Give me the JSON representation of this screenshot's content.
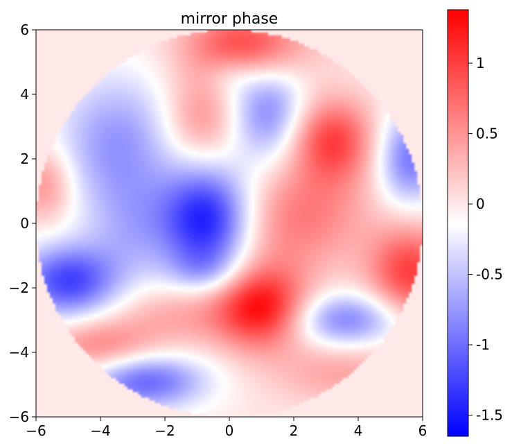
{
  "chart_data": {
    "type": "heatmap",
    "title": "mirror phase",
    "xlabel": "",
    "ylabel": "",
    "xlim": [
      -6,
      6
    ],
    "ylim": [
      -6,
      6
    ],
    "x_ticks": [
      -6,
      -4,
      -2,
      0,
      2,
      4,
      6
    ],
    "y_ticks": [
      -6,
      -4,
      -2,
      0,
      2,
      4,
      6
    ],
    "x_tick_labels": [
      "−6",
      "−4",
      "−2",
      "0",
      "2",
      "4",
      "6"
    ],
    "y_tick_labels": [
      "−6",
      "−4",
      "−2",
      "0",
      "2",
      "4",
      "6"
    ],
    "aperture_radius": 6,
    "outside_aperture_value": 0,
    "colormap": "bwr",
    "colormap_stops": [
      "#0000ff",
      "#ffffff",
      "#ff0000"
    ],
    "colorbar": {
      "range": [
        -1.65,
        1.38
      ],
      "center": -0.14,
      "ticks": [
        1,
        0.5,
        0,
        -0.5,
        -1,
        -1.5
      ],
      "tick_labels": [
        "1",
        "0.5",
        "0",
        "-0.5",
        "-1",
        "-1.5"
      ]
    },
    "features": [
      {
        "x": -0.7,
        "y": 0.1,
        "sx": 1.0,
        "sy": 1.2,
        "value": -1.5
      },
      {
        "x": -5.0,
        "y": -1.8,
        "sx": 1.1,
        "sy": 0.8,
        "value": -1.25
      },
      {
        "x": 1.0,
        "y": -2.6,
        "sx": 1.0,
        "sy": 0.9,
        "value": 1.25
      },
      {
        "x": 3.2,
        "y": 2.6,
        "sx": 0.9,
        "sy": 0.9,
        "value": 0.95
      },
      {
        "x": 0.5,
        "y": 5.5,
        "sx": 1.3,
        "sy": 0.8,
        "value": 1.0
      },
      {
        "x": 5.6,
        "y": -1.5,
        "sx": 0.9,
        "sy": 1.0,
        "value": 1.0
      },
      {
        "x": 1.2,
        "y": 3.5,
        "sx": 0.8,
        "sy": 1.1,
        "value": -0.85
      },
      {
        "x": 5.6,
        "y": 2.0,
        "sx": 0.7,
        "sy": 1.0,
        "value": -0.95
      },
      {
        "x": 3.6,
        "y": -3.0,
        "sx": 1.2,
        "sy": 0.6,
        "value": -0.9
      },
      {
        "x": -2.6,
        "y": -4.9,
        "sx": 1.3,
        "sy": 0.6,
        "value": -1.05
      },
      {
        "x": -3.5,
        "y": 2.5,
        "sx": 1.3,
        "sy": 1.5,
        "value": -0.75
      },
      {
        "x": -3.0,
        "y": -0.2,
        "sx": 1.0,
        "sy": 1.2,
        "value": -0.45
      },
      {
        "x": -0.9,
        "y": 3.2,
        "sx": 0.8,
        "sy": 1.0,
        "value": 0.55
      },
      {
        "x": -5.7,
        "y": 1.2,
        "sx": 0.6,
        "sy": 0.8,
        "value": 0.55
      },
      {
        "x": 1.5,
        "y": 0.0,
        "sx": 1.3,
        "sy": 1.2,
        "value": 0.45
      },
      {
        "x": -1.5,
        "y": -2.8,
        "sx": 1.5,
        "sy": 0.7,
        "value": 0.4
      },
      {
        "x": -4.0,
        "y": -3.8,
        "sx": 1.2,
        "sy": 0.6,
        "value": 0.6
      },
      {
        "x": 3.5,
        "y": -4.6,
        "sx": 1.5,
        "sy": 0.7,
        "value": 0.4
      },
      {
        "x": 3.0,
        "y": 0.5,
        "sx": 1.2,
        "sy": 1.2,
        "value": 0.35
      },
      {
        "x": -0.8,
        "y": -1.5,
        "sx": 0.8,
        "sy": 0.5,
        "value": -0.35
      },
      {
        "x": 0.0,
        "y": 4.6,
        "sx": 0.6,
        "sy": 0.5,
        "value": -0.3
      }
    ]
  }
}
